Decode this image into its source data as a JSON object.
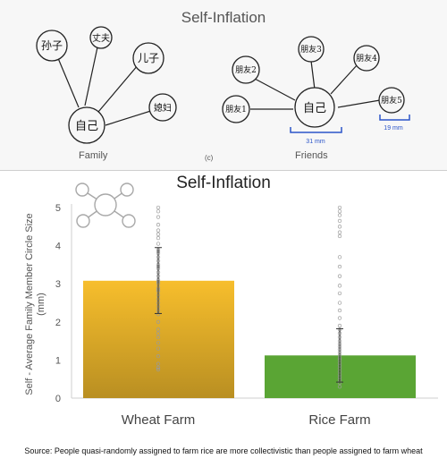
{
  "sketch": {
    "title": "Self-Inflation",
    "family_label": "Family",
    "figure_tag": "(c)",
    "friends_label": "Friends",
    "measure_self": "31 mm",
    "measure_friend": "19 mm",
    "family_nodes": [
      "孙子",
      "丈夫",
      "儿子",
      "媳妇",
      "自己"
    ],
    "friends_nodes": [
      "朋友2",
      "朋友3",
      "朋友4",
      "朋友1",
      "朋友5",
      "自己"
    ]
  },
  "chart_data": {
    "type": "bar",
    "title": "Self-Inflation",
    "categories": [
      "Wheat Farm",
      "Rice Farm"
    ],
    "values": [
      3.08,
      1.12
    ],
    "error": [
      {
        "low": 2.22,
        "high": 3.95
      },
      {
        "low": 0.42,
        "high": 1.82
      }
    ],
    "ylabel": "Self - Average Family Member Circle Size (mm)",
    "ylim": [
      0,
      5
    ],
    "yticks": [
      0,
      1,
      2,
      3,
      4,
      5
    ],
    "grid": false,
    "colors": {
      "wheat_top": "#f7be2c",
      "wheat_bottom": "#b98f22",
      "rice": "#5aa534",
      "points": "#9a9a9a"
    },
    "points": [
      [
        5.0,
        4.9,
        4.75,
        4.55,
        4.4,
        4.3,
        4.2,
        4.05,
        3.9,
        3.85,
        3.8,
        3.7,
        3.6,
        3.5,
        3.45,
        3.4,
        3.3,
        3.2,
        3.1,
        3.05,
        3.0,
        2.9,
        2.85,
        2.8,
        2.7,
        2.6,
        2.5,
        2.4,
        2.3,
        2.2,
        2.0,
        1.8,
        1.7,
        1.6,
        1.45,
        1.3,
        1.1,
        0.9,
        0.8,
        0.75
      ],
      [
        5.0,
        4.9,
        4.8,
        4.65,
        4.5,
        4.35,
        4.25,
        3.7,
        3.45,
        3.2,
        2.95,
        2.75,
        2.5,
        2.3,
        2.1,
        1.9,
        1.8,
        1.7,
        1.6,
        1.5,
        1.42,
        1.35,
        1.28,
        1.2,
        1.12,
        1.05,
        1.0,
        0.92,
        0.85,
        0.78,
        0.7,
        0.62,
        0.55,
        0.48,
        0.4,
        0.3
      ]
    ]
  },
  "source_note": "Source: People quasi-randomly assigned to farm rice are more collectivistic than people assigned to farm wheat"
}
